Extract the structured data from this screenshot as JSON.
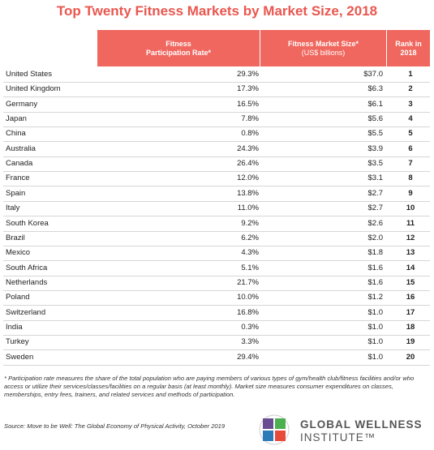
{
  "header": {
    "title": "Top Twenty Fitness Markets by Market Size, 2018"
  },
  "table": {
    "columns": [
      [
        "Fitness",
        "Participation Rate*"
      ],
      [
        "Fitness Market Size*",
        "(US$ billions)"
      ],
      [
        "Rank in",
        "2018"
      ]
    ],
    "rows": [
      [
        "United States",
        "29.3%",
        "$37.0",
        "1"
      ],
      [
        "United Kingdom",
        "17.3%",
        "$6.3",
        "2"
      ],
      [
        "Germany",
        "16.5%",
        "$6.1",
        "3"
      ],
      [
        "Japan",
        "7.8%",
        "$5.6",
        "4"
      ],
      [
        "China",
        "0.8%",
        "$5.5",
        "5"
      ],
      [
        "Australia",
        "24.3%",
        "$3.9",
        "6"
      ],
      [
        "Canada",
        "26.4%",
        "$3.5",
        "7"
      ],
      [
        "France",
        "12.0%",
        "$3.1",
        "8"
      ],
      [
        "Spain",
        "13.8%",
        "$2.7",
        "9"
      ],
      [
        "Italy",
        "11.0%",
        "$2.7",
        "10"
      ],
      [
        "South Korea",
        "9.2%",
        "$2.6",
        "11"
      ],
      [
        "Brazil",
        "6.2%",
        "$2.0",
        "12"
      ],
      [
        "Mexico",
        "4.3%",
        "$1.8",
        "13"
      ],
      [
        "South Africa",
        "5.1%",
        "$1.6",
        "14"
      ],
      [
        "Netherlands",
        "21.7%",
        "$1.6",
        "15"
      ],
      [
        "Poland",
        "10.0%",
        "$1.2",
        "16"
      ],
      [
        "Switzerland",
        "16.8%",
        "$1.0",
        "17"
      ],
      [
        "India",
        "0.3%",
        "$1.0",
        "18"
      ],
      [
        "Turkey",
        "3.3%",
        "$1.0",
        "19"
      ],
      [
        "Sweden",
        "29.4%",
        "$1.0",
        "20"
      ]
    ]
  },
  "footnote": "* Participation rate measures the share of the total population who are paying members of various types of gym/health club/fitness facilities and/or who access or utilize their services/classes/facilities on a regular basis (at least monthly). Market size measures consumer expenditures on classes, memberships, entry fees, trainers, and related services and methods of participation.",
  "source": "Source: Move to be Well: The Global Economy of Physical Activity, October 2019",
  "logo": [
    "GLOBAL WELLNESS",
    "INSTITUTE™"
  ]
}
